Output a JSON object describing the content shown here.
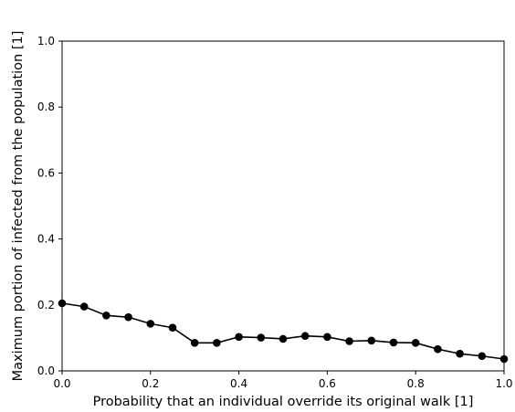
{
  "chart_data": {
    "type": "line",
    "title": "",
    "xlabel": "Probability that an individual override its original walk [1]",
    "ylabel": "Maximum portion of infected from the population [1]",
    "xlim": [
      0.0,
      1.0
    ],
    "ylim": [
      0.0,
      1.0
    ],
    "xticks": [
      0.0,
      0.2,
      0.4,
      0.6,
      0.8,
      1.0
    ],
    "yticks": [
      0.0,
      0.2,
      0.4,
      0.6,
      0.8,
      1.0
    ],
    "xtick_labels": [
      "0.0",
      "0.2",
      "0.4",
      "0.6",
      "0.8",
      "1.0"
    ],
    "ytick_labels": [
      "0.0",
      "0.2",
      "0.4",
      "0.6",
      "0.8",
      "1.0"
    ],
    "grid": false,
    "legend": false,
    "series": [
      {
        "color": "#000000",
        "marker": "circle",
        "x": [
          0.0,
          0.05,
          0.1,
          0.15,
          0.2,
          0.25,
          0.3,
          0.35,
          0.4,
          0.45,
          0.5,
          0.55,
          0.6,
          0.65,
          0.7,
          0.75,
          0.8,
          0.85,
          0.9,
          0.95,
          1.0
        ],
        "y": [
          0.205,
          0.195,
          0.168,
          0.163,
          0.143,
          0.131,
          0.085,
          0.085,
          0.103,
          0.101,
          0.097,
          0.106,
          0.103,
          0.09,
          0.092,
          0.086,
          0.085,
          0.066,
          0.052,
          0.045,
          0.036
        ]
      }
    ]
  }
}
